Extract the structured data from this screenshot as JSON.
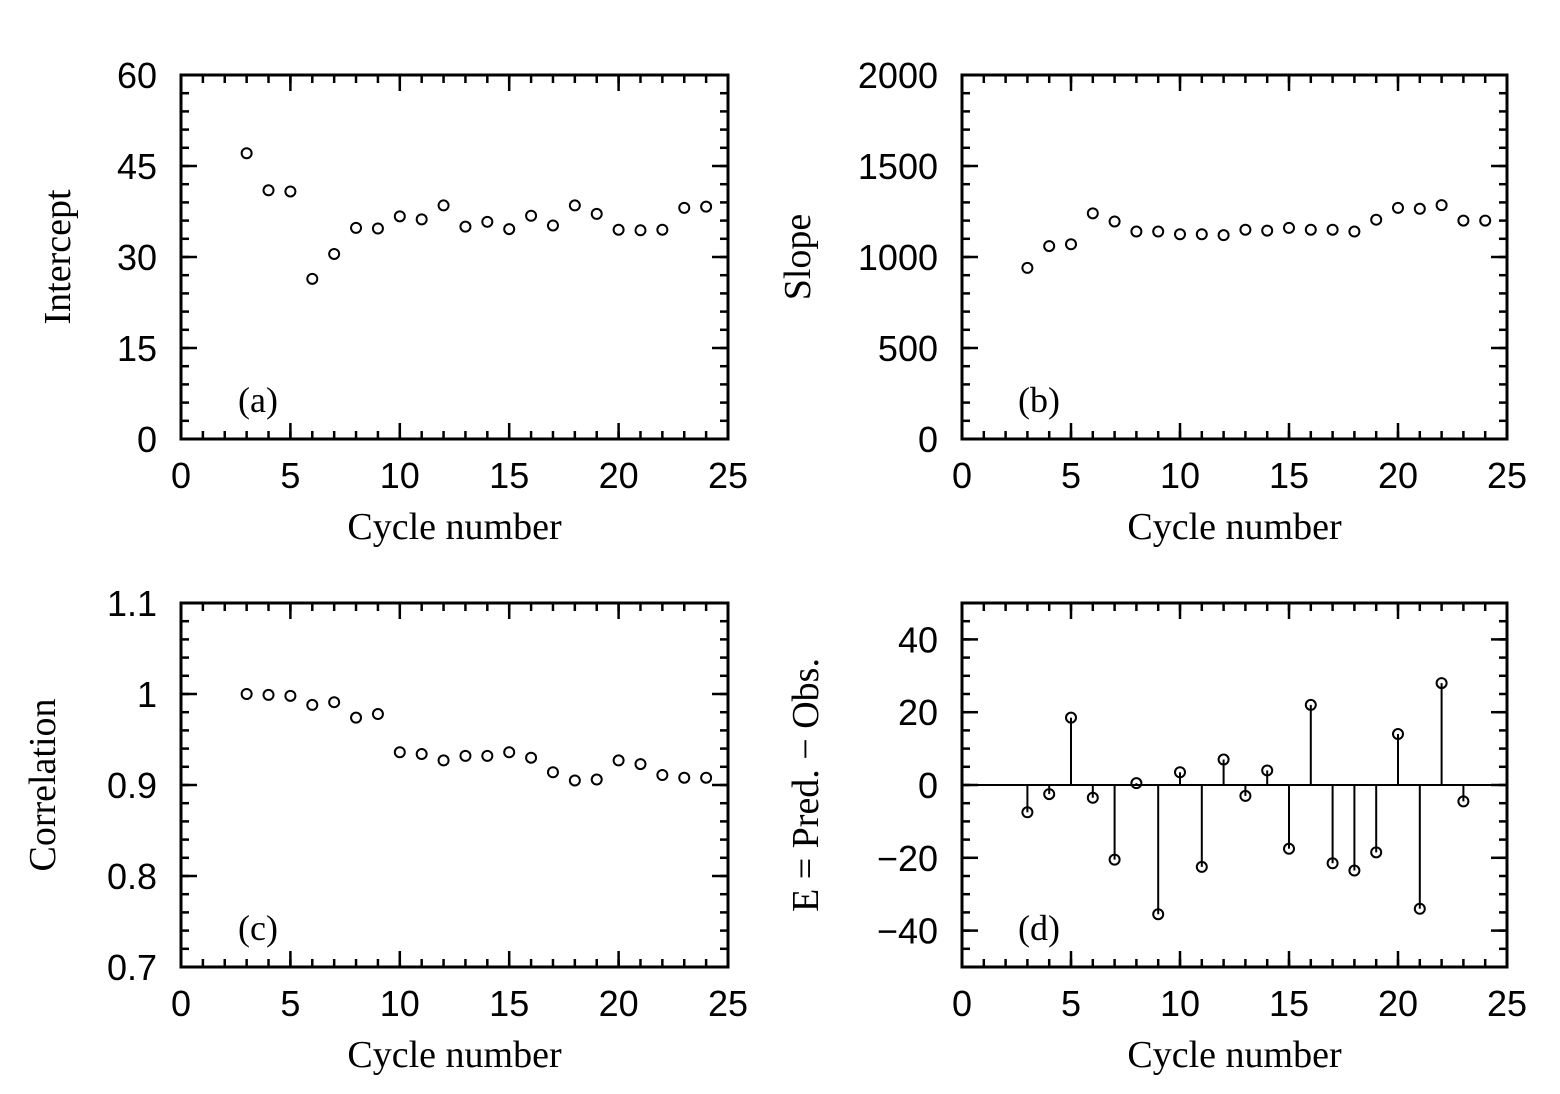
{
  "chart_data": [
    {
      "id": "a",
      "type": "scatter",
      "panel_tag": "(a)",
      "xlabel": "Cycle number",
      "ylabel": "Intercept",
      "xlim": [
        0,
        25
      ],
      "ylim": [
        0,
        60
      ],
      "x_ticks": [
        0,
        5,
        10,
        15,
        20,
        25
      ],
      "x_tick_labels": [
        "0",
        "5",
        "10",
        "15",
        "20",
        "25"
      ],
      "y_ticks": [
        0,
        15,
        30,
        45,
        60
      ],
      "y_tick_labels": [
        "0",
        "15",
        "30",
        "45",
        "60"
      ],
      "x_minor_step": 1,
      "y_minor_step": 3,
      "x": [
        3,
        4,
        5,
        6,
        7,
        8,
        9,
        10,
        11,
        12,
        13,
        14,
        15,
        16,
        17,
        18,
        19,
        20,
        21,
        22,
        23,
        24
      ],
      "y": [
        47.1,
        41.0,
        40.8,
        26.4,
        30.5,
        34.8,
        34.7,
        36.7,
        36.2,
        38.5,
        35.0,
        35.8,
        34.6,
        36.8,
        35.2,
        38.5,
        37.1,
        34.5,
        34.4,
        34.5,
        38.1,
        38.3
      ]
    },
    {
      "id": "b",
      "type": "scatter",
      "panel_tag": "(b)",
      "xlabel": "Cycle number",
      "ylabel": "Slope",
      "xlim": [
        0,
        25
      ],
      "ylim": [
        0,
        2000
      ],
      "x_ticks": [
        0,
        5,
        10,
        15,
        20,
        25
      ],
      "x_tick_labels": [
        "0",
        "5",
        "10",
        "15",
        "20",
        "25"
      ],
      "y_ticks": [
        0,
        500,
        1000,
        1500,
        2000
      ],
      "y_tick_labels": [
        "0",
        "500",
        "1000",
        "1500",
        "2000"
      ],
      "x_minor_step": 1,
      "y_minor_step": 100,
      "x": [
        3,
        4,
        5,
        6,
        7,
        8,
        9,
        10,
        11,
        12,
        13,
        14,
        15,
        16,
        17,
        18,
        19,
        20,
        21,
        22,
        23,
        24
      ],
      "y": [
        940,
        1060,
        1070,
        1240,
        1195,
        1140,
        1140,
        1125,
        1125,
        1120,
        1150,
        1145,
        1160,
        1150,
        1150,
        1140,
        1205,
        1270,
        1265,
        1285,
        1200,
        1200
      ]
    },
    {
      "id": "c",
      "type": "scatter",
      "panel_tag": "(c)",
      "xlabel": "Cycle number",
      "ylabel": "Correlation",
      "xlim": [
        0,
        25
      ],
      "ylim": [
        0.7,
        1.1
      ],
      "x_ticks": [
        0,
        5,
        10,
        15,
        20,
        25
      ],
      "x_tick_labels": [
        "0",
        "5",
        "10",
        "15",
        "20",
        "25"
      ],
      "y_ticks": [
        0.7,
        0.8,
        0.9,
        1.0,
        1.1
      ],
      "y_tick_labels": [
        "0.7",
        "0.8",
        "0.9",
        "1",
        "1.1"
      ],
      "x_minor_step": 1,
      "y_minor_step": 0.02,
      "x": [
        3,
        4,
        5,
        6,
        7,
        8,
        9,
        10,
        11,
        12,
        13,
        14,
        15,
        16,
        17,
        18,
        19,
        20,
        21,
        22,
        23,
        24
      ],
      "y": [
        1.0,
        0.999,
        0.998,
        0.988,
        0.991,
        0.974,
        0.978,
        0.936,
        0.934,
        0.927,
        0.932,
        0.932,
        0.936,
        0.93,
        0.914,
        0.905,
        0.906,
        0.927,
        0.923,
        0.911,
        0.908,
        0.908
      ]
    },
    {
      "id": "d",
      "type": "stem",
      "panel_tag": "(d)",
      "xlabel": "Cycle number",
      "ylabel": "E = Pred. − Obs.",
      "xlim": [
        0,
        25
      ],
      "ylim": [
        -50,
        50
      ],
      "x_ticks": [
        0,
        5,
        10,
        15,
        20,
        25
      ],
      "x_tick_labels": [
        "0",
        "5",
        "10",
        "15",
        "20",
        "25"
      ],
      "y_ticks": [
        -40,
        -20,
        0,
        20,
        40
      ],
      "y_tick_labels": [
        "−40",
        "−20",
        "0",
        "20",
        "40"
      ],
      "x_minor_step": 1,
      "y_minor_step": 5,
      "baseline": 0,
      "x": [
        3,
        4,
        5,
        6,
        7,
        8,
        9,
        10,
        11,
        12,
        13,
        14,
        15,
        16,
        17,
        18,
        19,
        20,
        21,
        22,
        23
      ],
      "y": [
        -7.5,
        -2.5,
        18.5,
        -3.5,
        -20.5,
        0.5,
        -35.5,
        3.5,
        -22.5,
        7.0,
        -3.0,
        4.0,
        -17.5,
        22.0,
        -21.5,
        -23.5,
        -18.5,
        14.0,
        -34.0,
        28.0,
        -4.5
      ]
    }
  ]
}
